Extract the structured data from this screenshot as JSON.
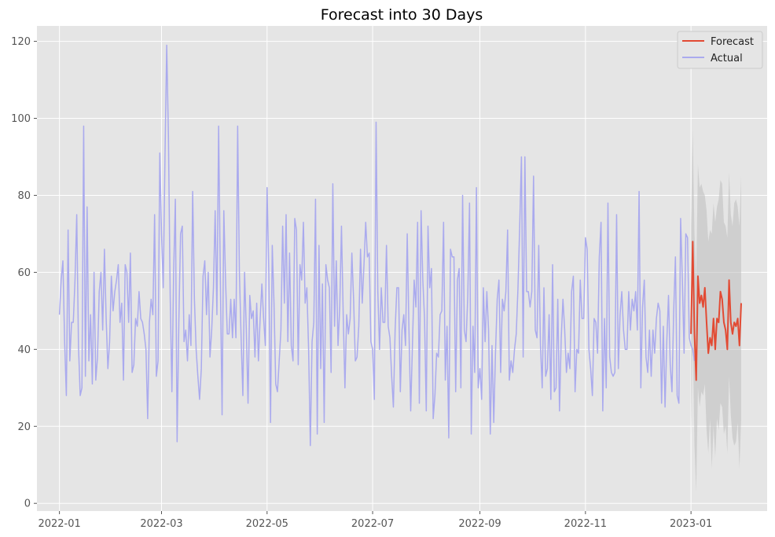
{
  "chart_data": {
    "type": "line",
    "title": "Forecast into 30 Days",
    "xlabel": "",
    "ylabel": "",
    "grid": true,
    "legend_placement": "top-right",
    "xlim": [
      "2021-12-19",
      "2023-02-14"
    ],
    "ylim": [
      -2,
      124
    ],
    "x_ticks": [
      "2022-01",
      "2022-03",
      "2022-05",
      "2022-07",
      "2022-09",
      "2022-11",
      "2023-01"
    ],
    "y_ticks": [
      0,
      20,
      40,
      60,
      80,
      100,
      120
    ],
    "colors": {
      "background": "#e5e5e5",
      "grid": "#ffffff",
      "actual": "#aaaaee",
      "forecast": "#e24a33",
      "band": "#bdbdbd"
    },
    "series": [
      {
        "name": "Forecast",
        "start": "2023-01-01",
        "step_days": 1,
        "values": [
          44,
          68,
          44,
          32,
          59,
          52,
          54,
          51,
          56,
          47,
          39,
          43,
          41,
          48,
          40,
          48,
          47,
          55,
          53,
          47,
          45,
          40,
          58,
          47,
          44,
          47,
          46,
          48,
          41,
          52
        ]
      },
      {
        "name": "Actual",
        "start": "2022-01-01",
        "step_days": 1,
        "values": [
          49,
          58,
          63,
          42,
          28,
          71,
          37,
          47,
          47,
          58,
          75,
          41,
          28,
          30,
          98,
          33,
          77,
          37,
          49,
          31,
          60,
          32,
          38,
          55,
          60,
          45,
          66,
          48,
          35,
          42,
          59,
          50,
          55,
          58,
          62,
          47,
          52,
          32,
          62,
          60,
          47,
          65,
          34,
          36,
          48,
          46,
          55,
          48,
          47,
          44,
          40,
          22,
          47,
          53,
          49,
          75,
          33,
          37,
          91,
          70,
          56,
          90,
          119,
          95,
          54,
          29,
          60,
          79,
          16,
          47,
          70,
          72,
          42,
          45,
          37,
          49,
          41,
          81,
          53,
          40,
          33,
          27,
          35,
          59,
          63,
          49,
          60,
          38,
          45,
          56,
          76,
          49,
          98,
          58,
          23,
          76,
          58,
          44,
          44,
          53,
          43,
          53,
          43,
          98,
          60,
          43,
          28,
          60,
          45,
          26,
          54,
          48,
          50,
          38,
          52,
          37,
          48,
          57,
          48,
          41,
          82,
          60,
          21,
          67,
          52,
          31,
          29,
          37,
          45,
          72,
          52,
          75,
          42,
          65,
          41,
          37,
          74,
          71,
          36,
          62,
          58,
          73,
          52,
          56,
          40,
          15,
          42,
          47,
          79,
          18,
          67,
          35,
          57,
          21,
          62,
          58,
          56,
          34,
          83,
          46,
          63,
          41,
          51,
          72,
          49,
          30,
          49,
          44,
          48,
          65,
          53,
          37,
          38,
          46,
          66,
          52,
          62,
          73,
          64,
          65,
          42,
          40,
          27,
          99,
          55,
          40,
          56,
          47,
          47,
          67,
          46,
          43,
          33,
          25,
          45,
          56,
          56,
          29,
          45,
          49,
          41,
          70,
          45,
          24,
          41,
          58,
          51,
          73,
          26,
          76,
          58,
          48,
          24,
          72,
          56,
          61,
          22,
          28,
          39,
          38,
          49,
          50,
          73,
          32,
          46,
          17,
          66,
          64,
          64,
          29,
          58,
          61,
          30,
          80,
          45,
          42,
          54,
          78,
          18,
          46,
          34,
          82,
          30,
          35,
          27,
          56,
          42,
          55,
          45,
          18,
          41,
          21,
          39,
          53,
          58,
          34,
          53,
          50,
          55,
          71,
          32,
          37,
          34,
          40,
          44,
          56,
          72,
          90,
          38,
          90,
          55,
          55,
          51,
          55,
          85,
          45,
          43,
          67,
          41,
          30,
          56,
          33,
          35,
          49,
          27,
          62,
          29,
          30,
          53,
          24,
          43,
          53,
          45,
          34,
          39,
          35,
          55,
          59,
          29,
          40,
          39,
          58,
          48,
          48,
          69,
          66,
          40,
          35,
          28,
          48,
          47,
          39,
          64,
          73,
          24,
          48,
          30,
          78,
          38,
          34,
          33,
          34,
          75,
          35,
          49,
          55,
          45,
          40,
          40,
          55,
          45,
          53,
          50,
          55,
          45,
          81,
          30,
          51,
          58,
          38,
          34,
          45,
          33,
          45,
          39,
          48,
          52,
          50,
          26,
          46,
          25,
          42,
          54,
          36,
          29,
          50,
          64,
          28,
          26,
          74,
          58,
          39,
          70,
          69,
          43,
          41,
          40,
          37
        ]
      }
    ],
    "forecast_band": {
      "lower": [
        18,
        45,
        15,
        3,
        30,
        25,
        29,
        28,
        31,
        19,
        13,
        22,
        9,
        20,
        12,
        22,
        19,
        26,
        25,
        18,
        20,
        13,
        33,
        23,
        17,
        15,
        16,
        21,
        9,
        22
      ],
      "upper": [
        72,
        97,
        70,
        58,
        88,
        82,
        83,
        81,
        80,
        76,
        68,
        71,
        70,
        78,
        73,
        77,
        79,
        84,
        83,
        73,
        72,
        69,
        86,
        75,
        72,
        78,
        79,
        77,
        72,
        85
      ]
    }
  }
}
